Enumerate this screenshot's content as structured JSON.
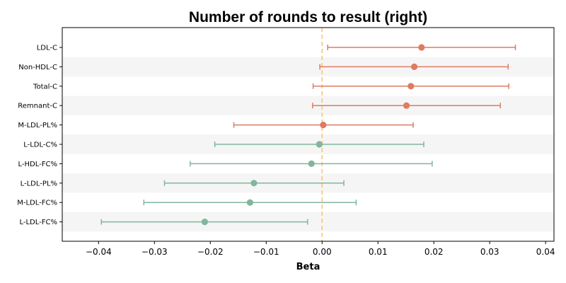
{
  "chart_data": {
    "type": "forest",
    "title": "Number of rounds to result (right)",
    "xlabel": "Beta",
    "ylabel": "",
    "xlim": [
      -0.0465,
      0.0415
    ],
    "xticks": [
      -0.04,
      -0.03,
      -0.02,
      -0.01,
      0.0,
      0.01,
      0.02,
      0.03,
      0.04
    ],
    "xtick_labels": [
      "−0.04",
      "−0.03",
      "−0.02",
      "−0.01",
      "0.00",
      "0.01",
      "0.02",
      "0.03",
      "0.04"
    ],
    "reference_line": 0.0,
    "reference_line_color": "#f5c57a",
    "grid": false,
    "row_shading": "alternating",
    "row_shade_color": "#f5f5f5",
    "colors": {
      "positive": "#de7b61",
      "negative": "#82b59d"
    },
    "rows": [
      {
        "label": "LDL-C",
        "beta": 0.0178,
        "low": 0.001,
        "high": 0.0346,
        "group": "positive"
      },
      {
        "label": "Non-HDL-C",
        "beta": 0.0165,
        "low": -0.0004,
        "high": 0.0333,
        "group": "positive"
      },
      {
        "label": "Total-C",
        "beta": 0.0159,
        "low": -0.0016,
        "high": 0.0334,
        "group": "positive"
      },
      {
        "label": "Remnant-C",
        "beta": 0.0151,
        "low": -0.0017,
        "high": 0.0319,
        "group": "positive"
      },
      {
        "label": "M-LDL-PL%",
        "beta": 0.0002,
        "low": -0.0158,
        "high": 0.0163,
        "group": "positive"
      },
      {
        "label": "L-LDL-C%",
        "beta": -0.0005,
        "low": -0.0192,
        "high": 0.0182,
        "group": "negative"
      },
      {
        "label": "L-HDL-FC%",
        "beta": -0.0019,
        "low": -0.0236,
        "high": 0.0197,
        "group": "negative"
      },
      {
        "label": "L-LDL-PL%",
        "beta": -0.0122,
        "low": -0.0282,
        "high": 0.0039,
        "group": "negative"
      },
      {
        "label": "M-LDL-FC%",
        "beta": -0.0129,
        "low": -0.0319,
        "high": 0.0061,
        "group": "negative"
      },
      {
        "label": "L-LDL-FC%",
        "beta": -0.021,
        "low": -0.0395,
        "high": -0.0026,
        "group": "negative"
      }
    ]
  }
}
